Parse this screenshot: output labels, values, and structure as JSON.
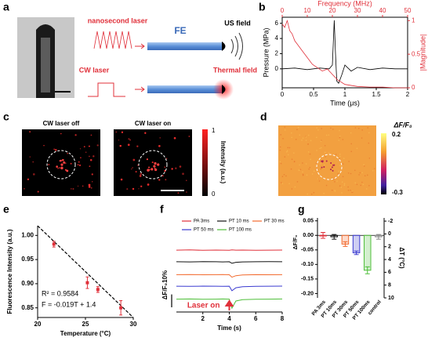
{
  "panel_labels": [
    "a",
    "b",
    "c",
    "d",
    "e",
    "f",
    "g"
  ],
  "diagram": {
    "pulsed_laser": "nanosecond laser",
    "fiber": "FE",
    "acoustic_output": "US field",
    "cw_laser": "CW laser",
    "thermal_output": "Thermal field"
  },
  "panel_c": {
    "titles": [
      "CW laser off",
      "CW laser on"
    ],
    "colorbar": {
      "label": "Intensity (a.u.)",
      "ticks": [
        1,
        0
      ]
    }
  },
  "panel_d": {
    "colorbar": {
      "label": "ΔF/F₀",
      "ticks": [
        0.2,
        -0.3
      ]
    }
  },
  "chart_data": [
    {
      "type": "line",
      "xlabel": "Time (μs)",
      "x2label": "Frequency (MHz)",
      "ylabel": "Pressure (MPa)",
      "y2label": "|Magnitude|",
      "xlim": [
        0,
        2
      ],
      "xticks": [
        0,
        0.5,
        1,
        1.5,
        2
      ],
      "x2lim": [
        0,
        50
      ],
      "x2ticks": [
        0,
        10,
        20,
        30,
        40,
        50
      ],
      "ylim": [
        -2.5,
        6.8
      ],
      "yticks": [
        0,
        2,
        4,
        6
      ],
      "y2lim": [
        0,
        1.05
      ],
      "y2ticks": [
        0,
        0.5,
        1
      ],
      "series": [
        {
          "color": "#000000",
          "x": [
            0,
            0.2,
            0.4,
            0.6,
            0.75,
            0.8,
            0.83,
            0.85,
            0.87,
            0.9,
            0.95,
            1.0,
            1.1,
            1.2,
            1.4,
            1.6,
            1.8,
            2.0
          ],
          "values": [
            0,
            0.1,
            -0.1,
            0.1,
            0,
            0.5,
            6.4,
            2,
            -1.6,
            -1.9,
            -0.8,
            0.5,
            -0.3,
            0.2,
            -0.1,
            0.1,
            0,
            0
          ]
        },
        {
          "color": "#e0303a",
          "axis": "y2",
          "x": [
            0,
            1,
            2,
            3,
            4,
            5,
            6,
            8,
            10,
            12,
            14,
            16,
            18,
            20,
            22,
            25,
            30,
            35,
            40,
            45,
            50
          ],
          "values": [
            0.95,
            0.9,
            1.0,
            0.85,
            0.8,
            0.7,
            0.65,
            0.55,
            0.45,
            0.35,
            0.3,
            0.25,
            0.28,
            0.2,
            0.12,
            0.05,
            0.02,
            0.01,
            0.01,
            0,
            0
          ]
        }
      ]
    },
    {
      "type": "scatter",
      "xlabel": "Temperature (°C)",
      "ylabel": "Fluorescence Intensity (a.u.)",
      "xlim": [
        20,
        30
      ],
      "xticks": [
        20,
        25,
        30
      ],
      "ylim": [
        0.83,
        1.02
      ],
      "yticks": [
        0.85,
        {
          "value": 0.9,
          "label": "0.90"
        },
        0.95,
        {
          "value": 1,
          "label": "1.00"
        }
      ],
      "x": [
        21.7,
        25.2,
        26.3,
        28.7
      ],
      "values": [
        0.982,
        0.902,
        0.888,
        0.85
      ],
      "errors": [
        0.006,
        0.012,
        0.006,
        0.015
      ],
      "color": "#e0303a",
      "fit_line": {
        "slope": -0.019,
        "intercept": 1.4
      },
      "annotations": [
        "R² = 0.9584",
        "F = -0.019T + 1.4"
      ]
    },
    {
      "type": "line",
      "xlabel": "Time (s)",
      "xlim": [
        0,
        8
      ],
      "xticks": [
        2,
        4,
        6,
        8
      ],
      "ylim": [
        -8,
        48
      ],
      "x": [
        0,
        1,
        2,
        3,
        3.5,
        4,
        4.2,
        4.5,
        5,
        6,
        7,
        8
      ],
      "series": [
        {
          "name": "PA 3ms",
          "color": "#e0303a",
          "values": [
            40,
            40.2,
            39.9,
            40.1,
            40,
            39.9,
            40.2,
            40,
            40.1,
            39.9,
            40,
            40.1
          ]
        },
        {
          "name": "PT 10 ms",
          "color": "#111111",
          "values": [
            31,
            30.9,
            31.1,
            31,
            30.9,
            31,
            29.8,
            30.6,
            30.9,
            31,
            31.1,
            31
          ]
        },
        {
          "name": "PT 30 ms",
          "color": "#f26a2e",
          "values": [
            21,
            21.1,
            20.9,
            21,
            21.1,
            20.9,
            19,
            20.2,
            20.8,
            21,
            20.9,
            21
          ]
        },
        {
          "name": "PT 50 ms",
          "color": "#3a3ad0",
          "values": [
            12,
            11.9,
            12.1,
            12,
            11.9,
            12,
            8.5,
            10.8,
            11.6,
            11.9,
            12,
            12.1
          ]
        },
        {
          "name": "PT 100 ms",
          "color": "#4fbf3a",
          "values": [
            2,
            2.1,
            1.9,
            2,
            2.1,
            2,
            -5,
            0.5,
            1.6,
            1.9,
            2,
            2.1
          ]
        }
      ],
      "scale_bar": {
        "value": 10,
        "label": "ΔF/F₀10%"
      },
      "annotation": {
        "text": "Laser on",
        "x": 4
      }
    },
    {
      "type": "bar",
      "ylabel": "ΔF/F₀",
      "y2label": "ΔT (°C)",
      "categories": [
        "PA 3ms",
        "PT 10ms",
        "PT 30ms",
        "PT 50ms",
        "PT 100ms",
        "control"
      ],
      "values": [
        0,
        -0.005,
        -0.03,
        -0.06,
        -0.12,
        -0.005
      ],
      "errors": [
        0.01,
        0.008,
        0.008,
        0.006,
        0.012,
        0.008
      ],
      "colors": [
        "#e0303a",
        "#111111",
        "#f26a2e",
        "#3a3ad0",
        "#4fbf3a",
        "#888888"
      ],
      "ylim": [
        -0.215,
        0.06
      ],
      "yticks": [
        0.05,
        {
          "value": 0,
          "label": "0.00"
        },
        -0.05,
        {
          "value": -0.1,
          "label": "-0.10"
        },
        -0.15,
        {
          "value": -0.2,
          "label": "-0.20"
        }
      ],
      "y2lim": [
        -2.5,
        10
      ],
      "y2ticks": [
        -2,
        0,
        2,
        4,
        6,
        8,
        10
      ]
    }
  ]
}
